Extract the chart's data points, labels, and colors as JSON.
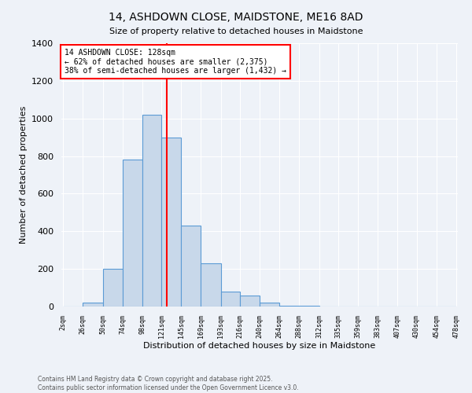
{
  "title_line1": "14, ASHDOWN CLOSE, MAIDSTONE, ME16 8AD",
  "title_line2": "Size of property relative to detached houses in Maidstone",
  "xlabel": "Distribution of detached houses by size in Maidstone",
  "ylabel": "Number of detached properties",
  "footnote1": "Contains HM Land Registry data © Crown copyright and database right 2025.",
  "footnote2": "Contains public sector information licensed under the Open Government Licence v3.0.",
  "bin_edges": [
    2,
    26,
    50,
    74,
    98,
    121,
    145,
    169,
    193,
    216,
    240,
    264,
    288,
    312,
    335,
    359,
    383,
    407,
    430,
    454,
    478
  ],
  "bin_labels": [
    "2sqm",
    "26sqm",
    "50sqm",
    "74sqm",
    "98sqm",
    "121sqm",
    "145sqm",
    "169sqm",
    "193sqm",
    "216sqm",
    "240sqm",
    "264sqm",
    "288sqm",
    "312sqm",
    "335sqm",
    "359sqm",
    "383sqm",
    "407sqm",
    "430sqm",
    "454sqm",
    "478sqm"
  ],
  "bar_heights": [
    0,
    20,
    200,
    780,
    1020,
    900,
    430,
    230,
    80,
    60,
    20,
    5,
    5,
    0,
    0,
    0,
    0,
    0,
    0,
    0
  ],
  "bar_color": "#c8d8ea",
  "bar_edge_color": "#5b9bd5",
  "red_line_x": 128,
  "annotation_text": "14 ASHDOWN CLOSE: 128sqm\n← 62% of detached houses are smaller (2,375)\n38% of semi-detached houses are larger (1,432) →",
  "annotation_box_color": "white",
  "annotation_box_edge_color": "red",
  "ylim": [
    0,
    1400
  ],
  "yticks": [
    0,
    200,
    400,
    600,
    800,
    1000,
    1200,
    1400
  ],
  "bg_color": "#eef2f8",
  "grid_color": "white"
}
